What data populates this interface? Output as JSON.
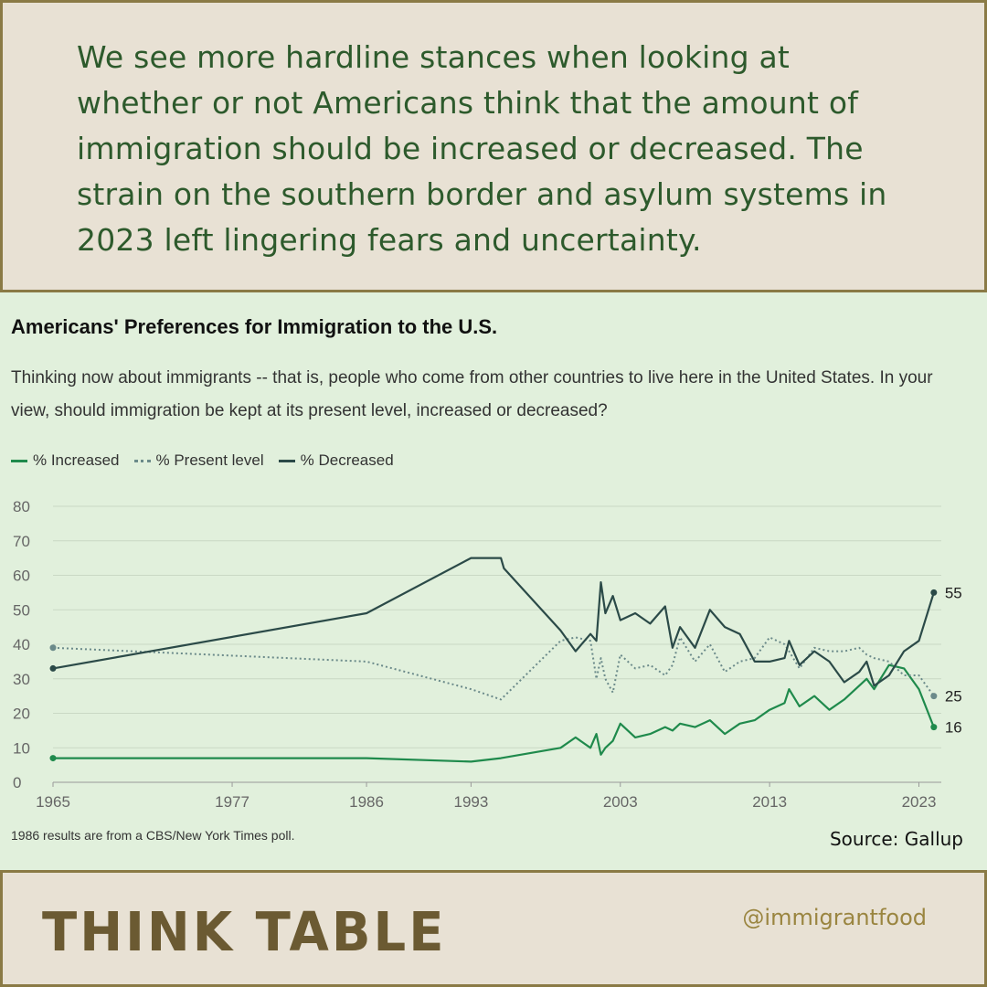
{
  "headline": "We see more hardline stances when looking at whether or not Americans think that the amount of immigration should be increased or decreased. The strain on the southern border and asylum systems in 2023 left lingering fears and uncertainty.",
  "chart": {
    "title": "Americans' Preferences for Immigration to the U.S.",
    "subtitle": "Thinking now about immigrants -- that is, people who come from other countries to live here in the United States. In your view, should immigration be kept at its present level, increased or decreased?",
    "footnote": "1986 results are from a CBS/New York Times poll.",
    "source": "Source: Gallup"
  },
  "brand": {
    "part1": "THINK",
    "part2": "TABLE"
  },
  "handle": "@immigrantfood",
  "colors": {
    "increased": "#1f8a4c",
    "present": "#6b8a8a",
    "decreased": "#2b4a48"
  },
  "chart_data": {
    "type": "line",
    "title": "Americans' Preferences for Immigration to the U.S.",
    "xlabel": "",
    "ylabel": "",
    "xlim": [
      1965,
      2024.5
    ],
    "ylim": [
      0,
      80
    ],
    "yticks": [
      0,
      10,
      20,
      30,
      40,
      50,
      60,
      70,
      80
    ],
    "xticks": [
      1965,
      1977,
      1986,
      1993,
      2003,
      2013,
      2023
    ],
    "grid": true,
    "legend": "top-left",
    "series": [
      {
        "name": "% Increased",
        "style": "solid",
        "end_label": "16",
        "x": [
          1965,
          1986,
          1993,
          1995,
          1999,
          2000,
          2001,
          2001.4,
          2001.7,
          2002,
          2002.5,
          2003,
          2004,
          2005,
          2006,
          2006.5,
          2007,
          2008,
          2009,
          2010,
          2011,
          2012,
          2013,
          2014,
          2014.3,
          2015,
          2016,
          2017,
          2018,
          2019,
          2019.5,
          2020,
          2021,
          2022,
          2023,
          2024
        ],
        "values": [
          7,
          7,
          6,
          7,
          10,
          13,
          10,
          14,
          8,
          10,
          12,
          17,
          13,
          14,
          16,
          15,
          17,
          16,
          18,
          14,
          17,
          18,
          21,
          23,
          27,
          22,
          25,
          21,
          24,
          28,
          30,
          27,
          34,
          33,
          27,
          16
        ]
      },
      {
        "name": "% Present level",
        "style": "dotted",
        "end_label": "25",
        "x": [
          1965,
          1986,
          1993,
          1995,
          1999,
          2000,
          2001,
          2001.4,
          2001.7,
          2002,
          2002.5,
          2003,
          2004,
          2005,
          2006,
          2006.5,
          2007,
          2008,
          2009,
          2010,
          2011,
          2012,
          2013,
          2014,
          2014.3,
          2015,
          2016,
          2017,
          2018,
          2019,
          2019.5,
          2020,
          2021,
          2022,
          2023,
          2024
        ],
        "values": [
          39,
          35,
          27,
          24,
          41,
          42,
          41,
          30,
          36,
          30,
          26,
          37,
          33,
          34,
          31,
          34,
          42,
          35,
          40,
          32,
          35,
          36,
          42,
          40,
          38,
          33,
          39,
          38,
          38,
          39,
          37,
          36,
          35,
          31,
          31,
          25
        ]
      },
      {
        "name": "% Decreased",
        "style": "solid",
        "end_label": "55",
        "x": [
          1965,
          1986,
          1993,
          1995,
          1995.2,
          1999,
          2000,
          2001,
          2001.4,
          2001.7,
          2002,
          2002.5,
          2003,
          2004,
          2005,
          2006,
          2006.5,
          2007,
          2008,
          2009,
          2010,
          2011,
          2012,
          2013,
          2014,
          2014.3,
          2015,
          2016,
          2017,
          2018,
          2019,
          2019.5,
          2020,
          2021,
          2022,
          2023,
          2024
        ],
        "values": [
          33,
          49,
          65,
          65,
          62,
          44,
          38,
          43,
          41,
          58,
          49,
          54,
          47,
          49,
          46,
          51,
          39,
          45,
          39,
          50,
          45,
          43,
          35,
          35,
          36,
          41,
          34,
          38,
          35,
          29,
          32,
          35,
          28,
          31,
          38,
          41,
          55
        ]
      }
    ]
  }
}
